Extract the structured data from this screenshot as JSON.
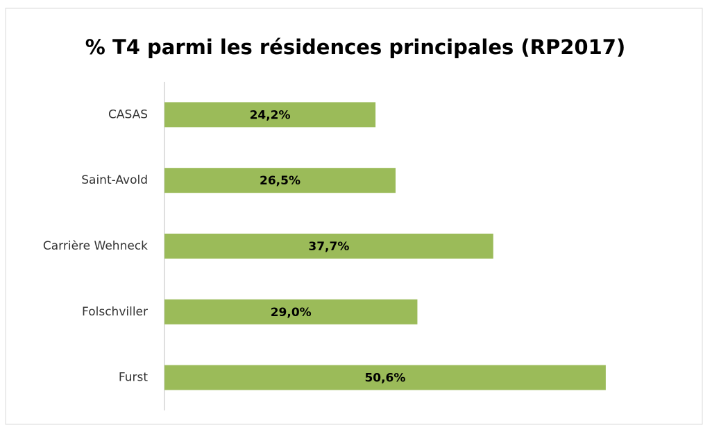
{
  "chart_data": {
    "type": "bar",
    "orientation": "horizontal",
    "title": "% T4 parmi les résidences principales (RP2017)",
    "categories": [
      "CASAS",
      "Saint-Avold",
      "Carrière Wehneck",
      "Folschviller",
      "Furst"
    ],
    "values": [
      24.2,
      26.5,
      37.7,
      29.0,
      50.6
    ],
    "value_labels": [
      "24,2%",
      "26,5%",
      "37,7%",
      "29,0%",
      "50,6%"
    ],
    "color": "#9bbb59",
    "xlim": [
      0,
      60
    ]
  }
}
